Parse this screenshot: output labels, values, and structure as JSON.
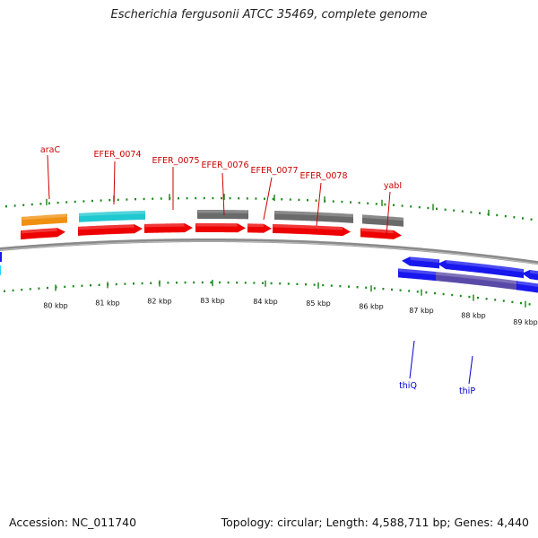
{
  "title": "Escherichia fergusonii ATCC 35469, complete genome",
  "footer": {
    "accession": "Accession: NC_011740",
    "topology": "Topology: circular; Length: 4,588,711 bp; Genes: 4,440"
  },
  "colors": {
    "red": "#ee0000",
    "orange": "#f09010",
    "cyan": "#20c8d0",
    "gray": "#6a6a6a",
    "blue": "#1818ee",
    "purple": "#5a4aa8",
    "tick_green": "#228b22",
    "backbone": "#8a8a8a"
  },
  "genes_forward_labeled": [
    {
      "label": "araC",
      "color": "orange"
    },
    {
      "label": "EFER_0074",
      "color": "cyan"
    },
    {
      "label": "EFER_0075",
      "color": "red"
    },
    {
      "label": "EFER_0076",
      "color": "gray"
    },
    {
      "label": "EFER_0077",
      "color": "red"
    },
    {
      "label": "EFER_0078",
      "color": "gray"
    },
    {
      "label": "yabI",
      "color": "gray"
    }
  ],
  "genes_reverse_labeled": [
    {
      "label": "thiQ",
      "color": "blue"
    },
    {
      "label": "thiP",
      "color": "blue"
    }
  ],
  "kbp_labels": [
    "80 kbp",
    "81 kbp",
    "82 kbp",
    "83 kbp",
    "84 kbp",
    "85 kbp",
    "86 kbp",
    "87 kbp",
    "88 kbp",
    "89 kbp"
  ]
}
